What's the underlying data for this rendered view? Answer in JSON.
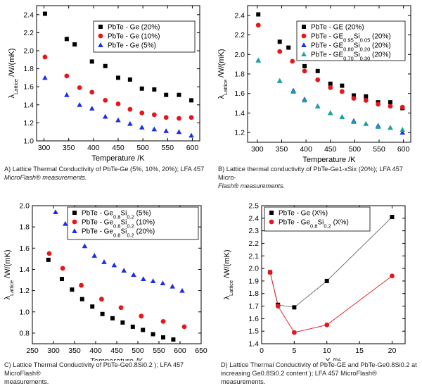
{
  "chart_data": [
    {
      "type": "scatter",
      "ylabel_main": "λ",
      "ylabel_sub": "Lattice",
      "ylabel_rest": " /W/(mK)",
      "xlabel": "Temperature /K",
      "xlim": [
        285,
        615
      ],
      "ylim": [
        1.0,
        2.5
      ],
      "xticks": [
        300,
        350,
        400,
        450,
        500,
        550,
        600
      ],
      "yticks": [
        1.0,
        1.2,
        1.4,
        1.6,
        1.8,
        2.0,
        2.2,
        2.4
      ],
      "legend_position": "top-right",
      "series": [
        {
          "name": "PbTe - Ge (20%)",
          "marker": "square",
          "color": "#000000",
          "x": [
            302,
            346,
            362,
            397,
            424,
            450,
            474,
            498,
            523,
            547,
            573,
            598
          ],
          "y": [
            2.41,
            2.13,
            2.07,
            1.88,
            1.83,
            1.7,
            1.68,
            1.58,
            1.57,
            1.51,
            1.51,
            1.45
          ]
        },
        {
          "name": "PbTe - Ge (10%)",
          "marker": "circle",
          "color": "#e8161b",
          "x": [
            302,
            346,
            372,
            397,
            424,
            450,
            474,
            498,
            523,
            547,
            573,
            598
          ],
          "y": [
            1.93,
            1.72,
            1.59,
            1.54,
            1.45,
            1.41,
            1.35,
            1.31,
            1.29,
            1.26,
            1.25,
            1.26
          ]
        },
        {
          "name": "PbTe - Ge (5%)",
          "marker": "triangle",
          "color": "#1c2ee8",
          "x": [
            302,
            346,
            372,
            397,
            424,
            450,
            474,
            498,
            523,
            547,
            573,
            598
          ],
          "y": [
            1.7,
            1.51,
            1.4,
            1.36,
            1.27,
            1.23,
            1.19,
            1.15,
            1.13,
            1.11,
            1.1,
            1.06
          ]
        }
      ]
    },
    {
      "type": "scatter",
      "ylabel_main": "λ",
      "ylabel_sub": "Lattice",
      "ylabel_rest": " /W/(mK)",
      "xlabel": "Temperature /K",
      "xlim": [
        280,
        615
      ],
      "ylim": [
        1.1,
        2.5
      ],
      "xticks": [
        300,
        350,
        400,
        450,
        500,
        550,
        600
      ],
      "yticks": [
        1.2,
        1.4,
        1.6,
        1.8,
        2.0,
        2.2,
        2.4
      ],
      "legend_position": "top-right",
      "series": [
        {
          "name": "PbTe - GE (20%)",
          "marker": "square",
          "color": "#000000",
          "x": [
            302,
            346,
            364,
            397,
            424,
            450,
            474,
            498,
            523,
            548,
            573,
            598
          ],
          "y": [
            2.41,
            2.13,
            2.07,
            1.88,
            1.83,
            1.7,
            1.68,
            1.58,
            1.57,
            1.51,
            1.51,
            1.45
          ]
        },
        {
          "name": "PbTe - GE0.95Si0.05 (20%)",
          "marker": "circle",
          "color": "#e8161b",
          "x": [
            302,
            346,
            372,
            397,
            424,
            450,
            474,
            498,
            523,
            548,
            573,
            598
          ],
          "y": [
            2.3,
            2.03,
            1.93,
            1.83,
            1.74,
            1.66,
            1.62,
            1.55,
            1.53,
            1.49,
            1.47,
            1.46
          ]
        },
        {
          "name": "PbTe - GE0.80Si0.20 (20%)",
          "marker": "triangle",
          "color": "#1c2ee8",
          "x": [
            302,
            346,
            374,
            397,
            424,
            450,
            474,
            498,
            523,
            548,
            573,
            598
          ],
          "y": [
            1.94,
            1.73,
            1.63,
            1.54,
            1.47,
            1.4,
            1.36,
            1.32,
            1.29,
            1.27,
            1.25,
            1.2
          ]
        },
        {
          "name": "PbTe - GE0.70Si0.30 (20%)",
          "marker": "triangle",
          "color": "#1aa59a",
          "x": [
            302,
            346,
            374,
            397,
            424,
            450,
            474,
            498,
            523,
            548,
            573,
            598
          ],
          "y": [
            1.94,
            1.73,
            1.62,
            1.53,
            1.47,
            1.4,
            1.36,
            1.31,
            1.29,
            1.26,
            1.25,
            1.23
          ]
        }
      ],
      "legend_labels": [
        {
          "base": "PbTe - GE (20%)"
        },
        {
          "a": "PbTe - GE",
          "s1": "0.95",
          "b": "Si",
          "s2": "0.05",
          "c": " (20%)"
        },
        {
          "a": "PbTe - GE",
          "s1": "0.80",
          "b": "Si",
          "s2": "0.20",
          "c": " (20%)"
        },
        {
          "a": "PbTe - GE",
          "s1": "0.70",
          "b": "Si",
          "s2": "0.30",
          "c": " (20%)"
        }
      ]
    },
    {
      "type": "scatter",
      "ylabel_main": "λ",
      "ylabel_sub": "Lattice",
      "ylabel_rest": " /W/(mK)",
      "xlabel": "Temperature /K",
      "xlim": [
        250,
        650
      ],
      "ylim": [
        0.7,
        2.0
      ],
      "xticks": [
        250,
        300,
        350,
        400,
        450,
        500,
        550,
        600,
        650
      ],
      "yticks": [
        0.8,
        1.0,
        1.2,
        1.4,
        1.6,
        1.8,
        2.0
      ],
      "legend_position": "top-right",
      "series": [
        {
          "name": "PbTe - Ge0.8Si0.2 (5%)",
          "marker": "square",
          "color": "#000000",
          "x": [
            288,
            320,
            344,
            368,
            392,
            416,
            440,
            464,
            488,
            512,
            536,
            560,
            584
          ],
          "y": [
            1.49,
            1.31,
            1.21,
            1.12,
            1.05,
            0.98,
            0.94,
            0.9,
            0.86,
            0.83,
            0.79,
            0.76,
            0.74
          ]
        },
        {
          "name": "PbTe - Ge0.8Si0.2 (10%)",
          "marker": "circle",
          "color": "#e8161b",
          "x": [
            290,
            322,
            366,
            414,
            460,
            508,
            560,
            610
          ],
          "y": [
            1.55,
            1.41,
            1.25,
            1.12,
            1.04,
            0.96,
            0.91,
            0.86
          ]
        },
        {
          "name": "PbTe - Ge0.8Si0.2 (20%)",
          "marker": "triangle",
          "color": "#1c2ee8",
          "x": [
            305,
            328,
            351,
            374,
            397,
            420,
            444,
            467,
            490,
            513,
            536,
            559,
            582,
            605
          ],
          "y": [
            1.94,
            1.83,
            1.71,
            1.62,
            1.53,
            1.47,
            1.44,
            1.39,
            1.35,
            1.31,
            1.29,
            1.27,
            1.24,
            1.2
          ]
        }
      ],
      "legend_labels": [
        {
          "a": "PbTe - Ge",
          "s1": "0.8",
          "b": "Si",
          "s2": "0.2",
          "c": " (5%)"
        },
        {
          "a": "PbTe - Ge",
          "s1": "0.8",
          "b": "Si",
          "s2": "0.2",
          "c": " (10%)"
        },
        {
          "a": "PbTe - Ge",
          "s1": "0.8",
          "b": "Si",
          "s2": "0.2",
          "c": " (20%)"
        }
      ]
    },
    {
      "type": "line",
      "ylabel_main": "λ",
      "ylabel_sub": "Lattice",
      "ylabel_rest": " /W/(mK)",
      "xlabel": "X /%",
      "xlim": [
        0,
        22
      ],
      "ylim": [
        1.4,
        2.5
      ],
      "xticks": [
        0,
        5,
        10,
        15,
        20
      ],
      "yticks": [
        1.4,
        1.5,
        1.6,
        1.7,
        1.8,
        1.9,
        2.0,
        2.1,
        2.2,
        2.3,
        2.4,
        2.5
      ],
      "legend_position": "top-left",
      "series": [
        {
          "name": "PbTe - Ge (X%)",
          "marker": "square",
          "color": "#000000",
          "line_color": "#666666",
          "x": [
            1.3,
            2.5,
            5,
            10,
            20
          ],
          "y": [
            1.97,
            1.71,
            1.69,
            1.9,
            2.41
          ]
        },
        {
          "name": "PbTe - Ge0.8Si0.2 (X%)",
          "marker": "circle",
          "color": "#e8161b",
          "line_color": "#e8161b",
          "x": [
            1.3,
            2.5,
            5,
            10,
            20
          ],
          "y": [
            1.97,
            1.7,
            1.49,
            1.55,
            1.94
          ]
        }
      ],
      "legend_labels": [
        {
          "base": "PbTe - Ge (X%)"
        },
        {
          "a": "PbTe - Ge",
          "s1": "0.8",
          "b": "Si",
          "s2": "0.2",
          "c": " (X%)"
        }
      ]
    }
  ],
  "captions": {
    "a_l1": "A) Lattice Thermal Conductivity of PbTe-Ge (5%, 10%, 20%); LFA 457",
    "a_l2": "MicroFlash® measurements.",
    "b_l1": "B) Lattice thermal conductivity of PbTe-Ge1-xSix (20%); LFA 457 Micro-",
    "b_l2": "Flash® measurements.",
    "c_l1": "C) Lattice Thermal Conductivity of PbTe-Ge0.8Si0.2 ); LFA 457 MicroFlash®",
    "c_l2": "measurements.",
    "d_l1": "D) Lattice Thermal Conductivity of PbTe-GE and PbTe-Ge0.8Si0.2 at",
    "d_l2": "increasing Ge0.8Si0.2 content ); LFA 457 MicroFlash® measurements."
  }
}
